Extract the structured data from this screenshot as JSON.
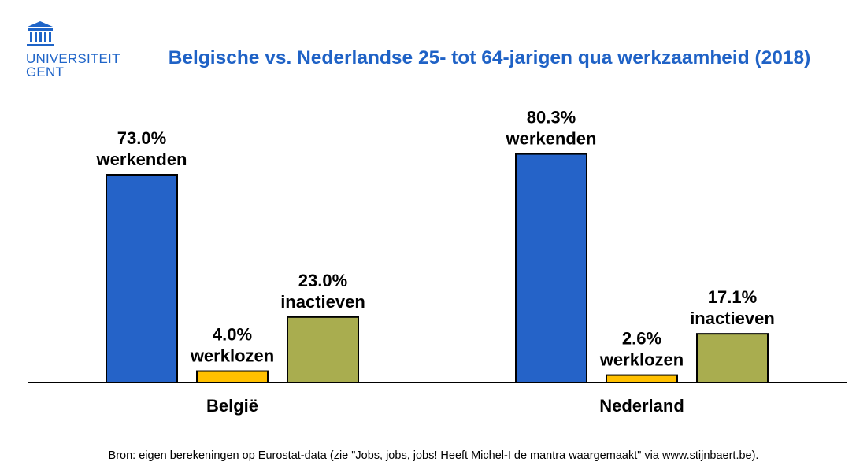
{
  "logo": {
    "line1": "UNIVERSITEIT",
    "line2": "GENT",
    "icon": "university-building-icon"
  },
  "title": "Belgische vs. Nederlandse 25- tot 64-jarigen qua werkzaamheid (2018)",
  "source": "Bron: eigen berekeningen op Eurostat-data (zie \"Jobs, jobs, jobs! Heeft Michel-I de mantra waargemaakt\"  via www.stijnbaert.be).",
  "colors": {
    "werkenden": "#2563c8",
    "werklozen": "#ffc000",
    "inactieven": "#a9ad4f",
    "title": "#1f62c6",
    "brand": "#1e64c8"
  },
  "chart_data": {
    "type": "bar",
    "title": "Belgische vs. Nederlandse 25- tot 64-jarigen qua werkzaamheid (2018)",
    "categories": [
      "België",
      "Nederland"
    ],
    "series": [
      {
        "name": "werkenden",
        "values": [
          73.0,
          80.3
        ],
        "labels": [
          "73.0%",
          "80.3%"
        ]
      },
      {
        "name": "werklozen",
        "values": [
          4.0,
          2.6
        ],
        "labels": [
          "4.0%",
          "2.6%"
        ]
      },
      {
        "name": "inactieven",
        "values": [
          23.0,
          17.1
        ],
        "labels": [
          "23.0%",
          "17.1%"
        ]
      }
    ],
    "xlabel": "",
    "ylabel": "",
    "ylim": [
      0,
      100
    ],
    "grid": false,
    "legend": "none"
  }
}
